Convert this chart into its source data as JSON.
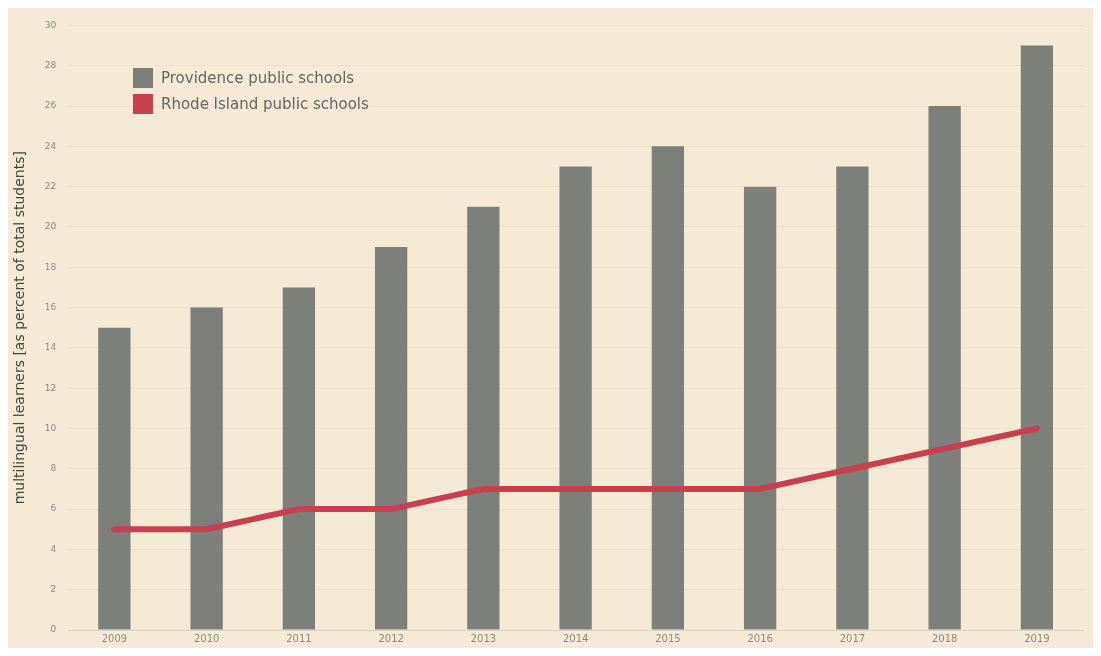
{
  "chart_data": {
    "type": "bar",
    "ylabel": "multilingual learners [as percent of total students]",
    "categories": [
      "2009",
      "2010",
      "2011",
      "2012",
      "2013",
      "2014",
      "2015",
      "2016",
      "2017",
      "2018",
      "2019"
    ],
    "series": [
      {
        "name": "Providence public schools",
        "color": "#7d7f7a",
        "values": [
          15,
          16,
          17,
          19,
          21,
          23,
          24,
          22,
          23,
          26,
          29
        ]
      },
      {
        "name": "Rhode Island public schools",
        "type": "line",
        "color": "#c8404d",
        "values": [
          5,
          5,
          6,
          6,
          7,
          7,
          7,
          7,
          8,
          9,
          10
        ]
      }
    ],
    "ylim": [
      0,
      30
    ],
    "yticks": [
      0,
      2,
      4,
      6,
      8,
      10,
      12,
      14,
      16,
      18,
      20,
      22,
      24,
      26,
      28,
      30
    ],
    "grid": "y",
    "legend": "top left",
    "marker": "none",
    "line_style": "solid"
  }
}
